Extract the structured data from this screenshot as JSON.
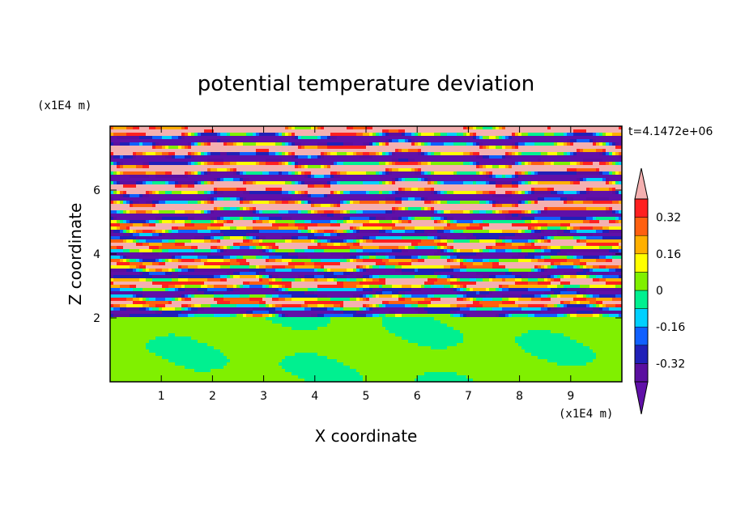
{
  "chart_data": {
    "type": "heatmap",
    "title": "potential temperature deviation",
    "xlabel": "X coordinate",
    "ylabel": "Z coordinate",
    "x_unit": "(x1E4 m)",
    "y_unit": "(x1E4 m)",
    "time_label": "t=4.1472e+06",
    "xlim": [
      0,
      10
    ],
    "ylim": [
      0,
      8
    ],
    "x_ticks": [
      1,
      2,
      3,
      4,
      5,
      6,
      7,
      8,
      9
    ],
    "y_ticks": [
      2,
      4,
      6
    ],
    "lower_layer_top": 2,
    "colorbar": {
      "labels": [
        "0.32",
        "0.16",
        "0",
        "-0.16",
        "-0.32"
      ],
      "label_values": [
        0.32,
        0.16,
        0,
        -0.16,
        -0.32
      ],
      "levels": [
        -0.4,
        -0.32,
        -0.24,
        -0.16,
        -0.08,
        0,
        0.08,
        0.16,
        0.24,
        0.32,
        0.4
      ],
      "colors": [
        "#5a0fa0",
        "#2020b8",
        "#1060ff",
        "#00d0ff",
        "#00f090",
        "#80f000",
        "#ffff00",
        "#ffb000",
        "#ff6010",
        "#ff2020"
      ],
      "over_color": "#f4b0b0",
      "under_color": "#6010a8"
    }
  }
}
